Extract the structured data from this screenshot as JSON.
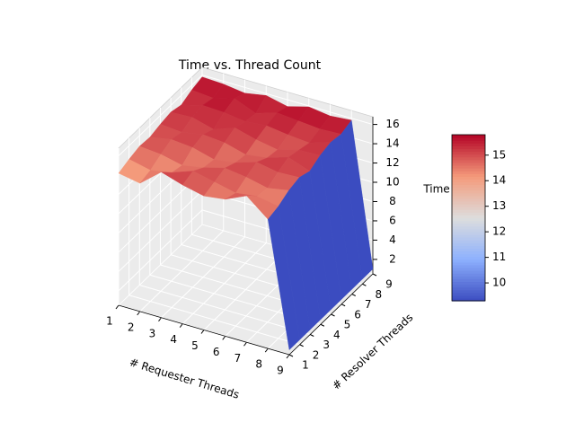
{
  "chart_data": {
    "type": "surface",
    "title": "Time vs. Thread Count",
    "x_label": "# Requester Threads",
    "y_label": "# Resolver Threads",
    "z_label": "Time",
    "x": [
      1,
      2,
      3,
      4,
      5,
      6,
      7,
      8,
      9
    ],
    "y": [
      1,
      2,
      3,
      4,
      5,
      6,
      7,
      8,
      9
    ],
    "z": [
      [
        14.2,
        14.6,
        14.9,
        14.8,
        15.1,
        15.3,
        15.0,
        15.5,
        15.8
      ],
      [
        13.8,
        14.1,
        14.7,
        15.2,
        14.9,
        15.4,
        15.6,
        15.3,
        15.7
      ],
      [
        15.6,
        14.5,
        14.2,
        15.0,
        15.3,
        14.8,
        15.5,
        15.9,
        15.4
      ],
      [
        14.9,
        15.3,
        14.6,
        14.4,
        15.1,
        15.6,
        15.2,
        15.0,
        15.8
      ],
      [
        14.4,
        14.8,
        15.2,
        14.7,
        14.5,
        15.0,
        15.4,
        15.7,
        15.3
      ],
      [
        14.7,
        14.3,
        14.9,
        15.4,
        14.8,
        14.6,
        15.1,
        15.5,
        15.9
      ],
      [
        15.7,
        14.6,
        14.4,
        15.0,
        15.5,
        15.2,
        14.9,
        15.3,
        15.6
      ],
      [
        13.9,
        14.2,
        14.8,
        15.1,
        14.7,
        15.3,
        15.6,
        15.4,
        15.8
      ],
      [
        1.0,
        1.0,
        1.0,
        1.0,
        1.0,
        1.0,
        1.0,
        1.0,
        1.0
      ]
    ],
    "xlim": [
      1,
      9
    ],
    "ylim": [
      1,
      9
    ],
    "zlim": [
      0.5,
      16.8
    ],
    "xticks": [
      1,
      2,
      3,
      4,
      5,
      6,
      7,
      8,
      9
    ],
    "yticks": [
      1,
      2,
      3,
      4,
      5,
      6,
      7,
      8,
      9
    ],
    "zticks": [
      2,
      4,
      6,
      8,
      10,
      12,
      14,
      16
    ],
    "colormap": "coolwarm",
    "clim": [
      9.3,
      15.8
    ],
    "colorbar_ticks": [
      10,
      11,
      12,
      13,
      14,
      15
    ]
  }
}
